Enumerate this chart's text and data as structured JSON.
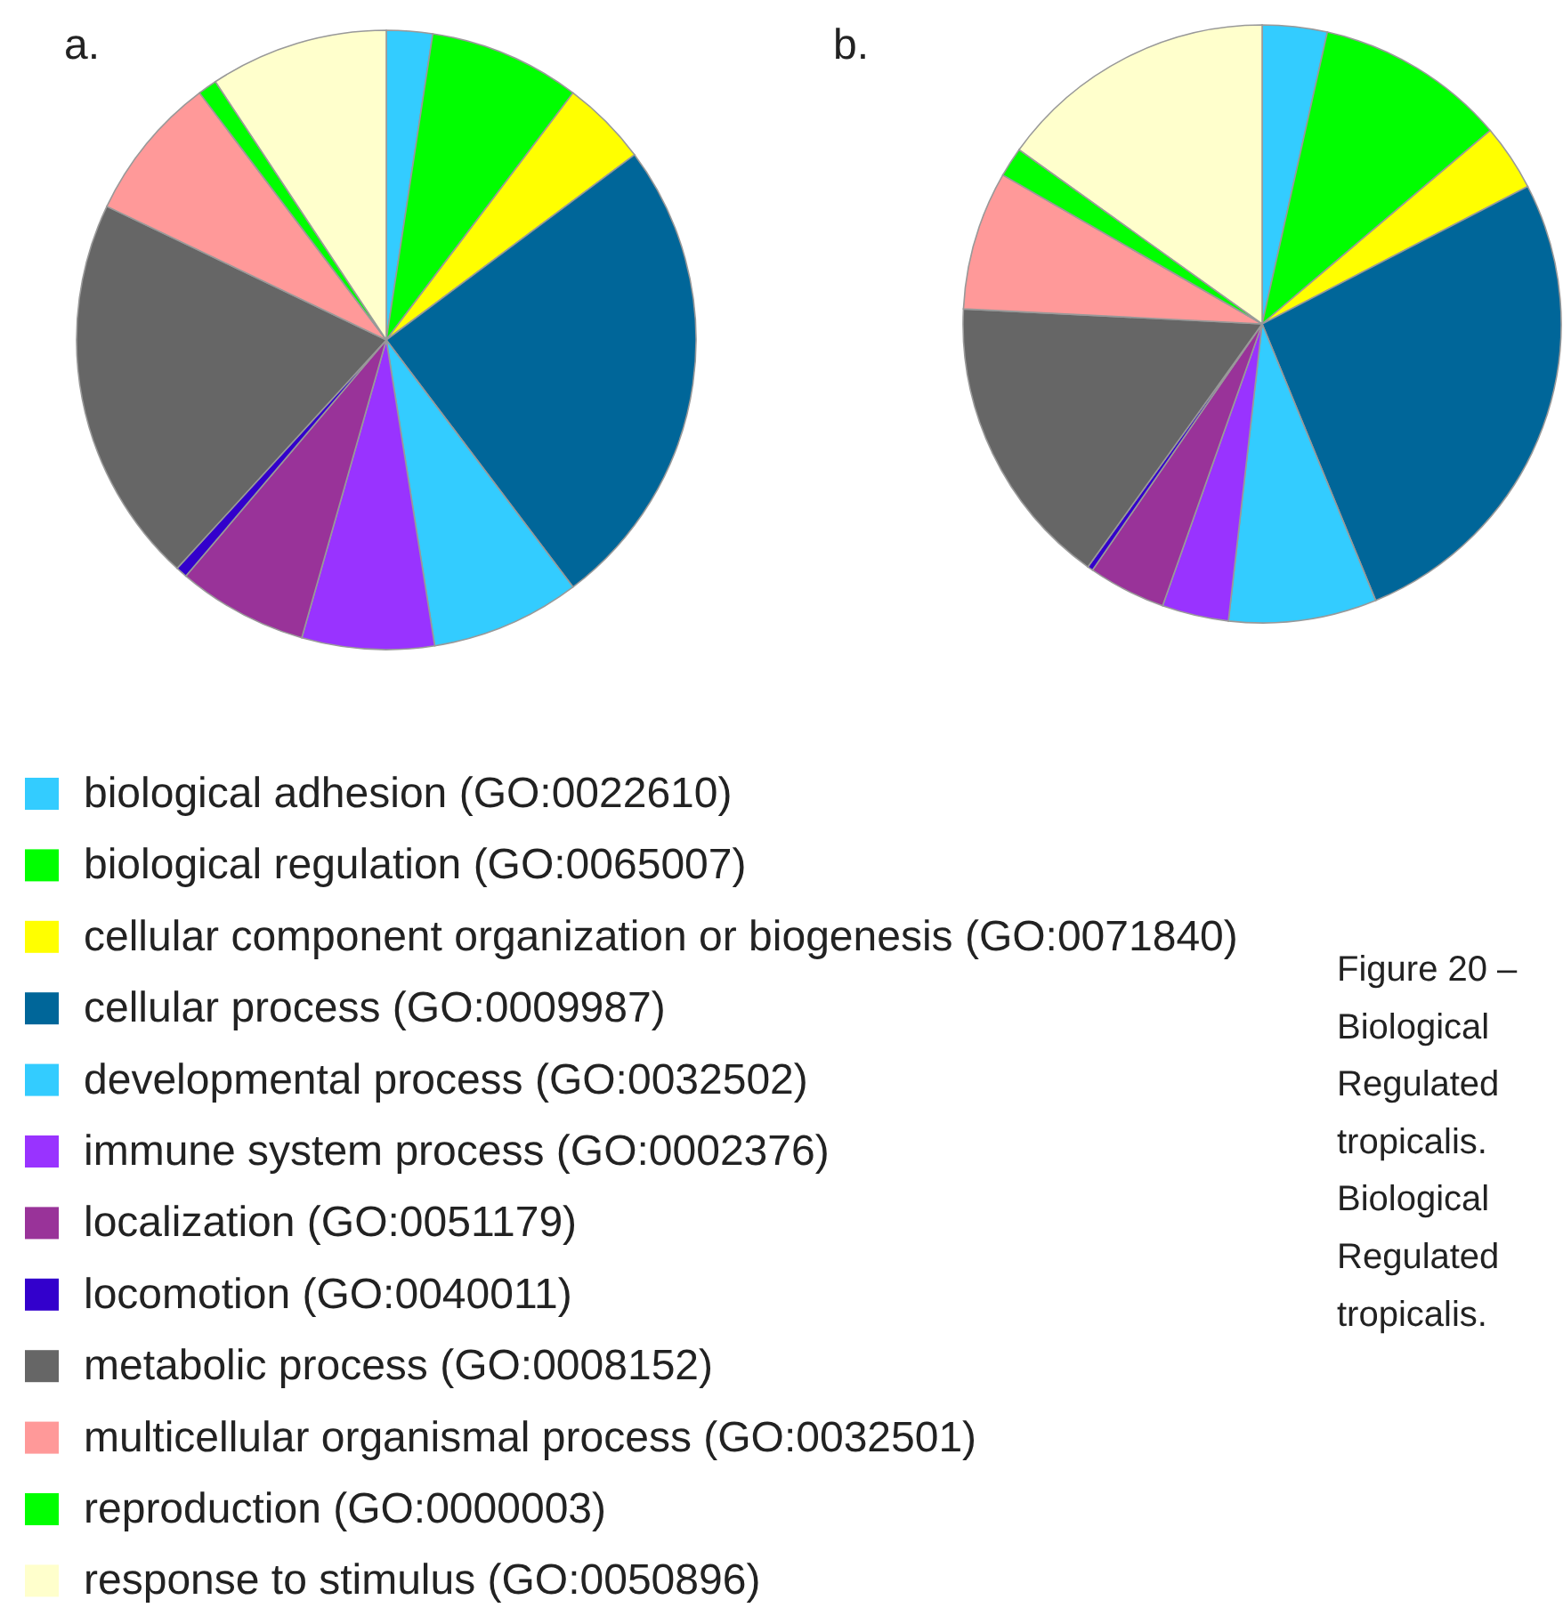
{
  "chart_data": [
    {
      "type": "pie",
      "title": "a.",
      "legend": "bottom",
      "categories": [
        "biological adhesion (GO:0022610)",
        "biological regulation (GO:0065007)",
        "cellular component organization or biogenesis (GO:0071840)",
        "cellular process (GO:0009987)",
        "developmental process (GO:0032502)",
        "immune system process (GO:0002376)",
        "localization (GO:0051179)",
        "locomotion (GO:0040011)",
        "metabolic process (GO:0008152)",
        "multicellular organismal process (GO:0032501)",
        "reproduction (GO:0000003)",
        "response to stimulus (GO:0050896)"
      ],
      "values": [
        2.4,
        7.9,
        4.5,
        24.9,
        7.8,
        6.9,
        6.8,
        0.6,
        20.3,
        7.6,
        1.0,
        9.3
      ],
      "colors": [
        "#33ccff",
        "#00ff00",
        "#ffff00",
        "#006699",
        "#33ccff",
        "#9933ff",
        "#993399",
        "#3300cc",
        "#666666",
        "#ff9999",
        "#00ff00",
        "#ffffcc"
      ]
    },
    {
      "type": "pie",
      "title": "b.",
      "categories": [
        null,
        null,
        null,
        null,
        null,
        null,
        null,
        null,
        null,
        null,
        null,
        null
      ],
      "values": [
        3.5,
        10.3,
        3.6,
        26.4,
        8.0,
        3.6,
        4.2,
        0.3,
        15.9,
        7.5,
        1.6,
        15.1
      ],
      "colors": [
        "#33ccff",
        "#00ff00",
        "#ffff00",
        "#006699",
        "#33ccff",
        "#9933ff",
        "#993399",
        "#3300cc",
        "#666666",
        "#ff9999",
        "#00ff00",
        "#ffffcc"
      ],
      "annotations": [
        "Figure 20 –",
        "Biological",
        "Regulated",
        "tropicalis.",
        "Biological",
        "Regulated",
        "tropicalis."
      ]
    }
  ]
}
